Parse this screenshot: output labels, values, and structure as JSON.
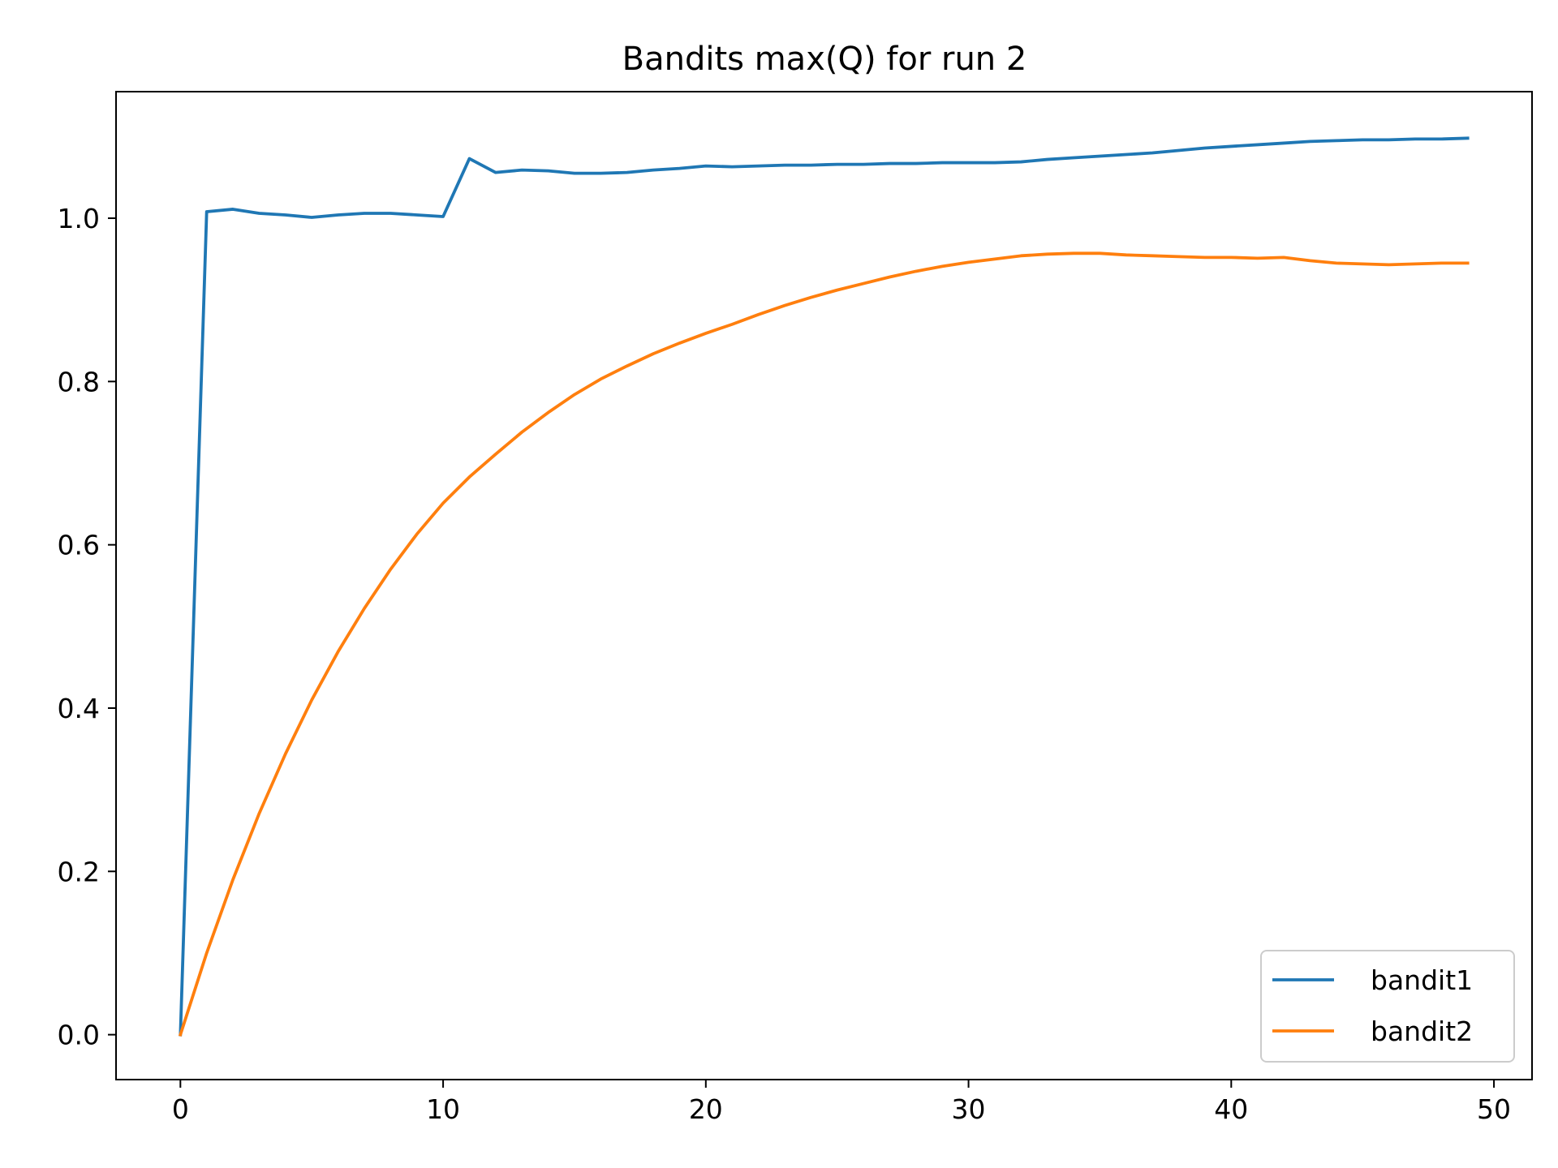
{
  "chart_data": {
    "type": "line",
    "title": "Bandits max(Q) for run 2",
    "xlabel": "",
    "ylabel": "",
    "xlim": [
      -2.45,
      51.45
    ],
    "ylim": [
      -0.055,
      1.155
    ],
    "xticks": [
      0,
      10,
      20,
      30,
      40,
      50
    ],
    "xtick_labels": [
      "0",
      "10",
      "20",
      "30",
      "40",
      "50"
    ],
    "yticks": [
      0.0,
      0.2,
      0.4,
      0.6,
      0.8,
      1.0
    ],
    "ytick_labels": [
      "0.0",
      "0.2",
      "0.4",
      "0.6",
      "0.8",
      "1.0"
    ],
    "grid": false,
    "legend_position": "bottom-right",
    "x": [
      0,
      1,
      2,
      3,
      4,
      5,
      6,
      7,
      8,
      9,
      10,
      11,
      12,
      13,
      14,
      15,
      16,
      17,
      18,
      19,
      20,
      21,
      22,
      23,
      24,
      25,
      26,
      27,
      28,
      29,
      30,
      31,
      32,
      33,
      34,
      35,
      36,
      37,
      38,
      39,
      40,
      41,
      42,
      43,
      44,
      45,
      46,
      47,
      48,
      49
    ],
    "series": [
      {
        "name": "bandit1",
        "color": "#1f77b4",
        "values": [
          0.0,
          1.008,
          1.011,
          1.006,
          1.004,
          1.001,
          1.004,
          1.006,
          1.006,
          1.004,
          1.002,
          1.073,
          1.056,
          1.059,
          1.058,
          1.055,
          1.055,
          1.056,
          1.059,
          1.061,
          1.064,
          1.063,
          1.064,
          1.065,
          1.065,
          1.066,
          1.066,
          1.067,
          1.067,
          1.068,
          1.068,
          1.068,
          1.069,
          1.072,
          1.074,
          1.076,
          1.078,
          1.08,
          1.083,
          1.086,
          1.088,
          1.09,
          1.092,
          1.094,
          1.095,
          1.096,
          1.096,
          1.097,
          1.097,
          1.098
        ]
      },
      {
        "name": "bandit2",
        "color": "#ff7f0e",
        "values": [
          0.0,
          0.1,
          0.19,
          0.271,
          0.344,
          0.41,
          0.469,
          0.522,
          0.57,
          0.613,
          0.651,
          0.683,
          0.711,
          0.738,
          0.762,
          0.784,
          0.803,
          0.819,
          0.834,
          0.847,
          0.859,
          0.87,
          0.882,
          0.893,
          0.903,
          0.912,
          0.92,
          0.928,
          0.935,
          0.941,
          0.946,
          0.95,
          0.954,
          0.956,
          0.957,
          0.957,
          0.955,
          0.954,
          0.953,
          0.952,
          0.952,
          0.951,
          0.952,
          0.948,
          0.945,
          0.944,
          0.943,
          0.944,
          0.945,
          0.945
        ]
      }
    ]
  }
}
